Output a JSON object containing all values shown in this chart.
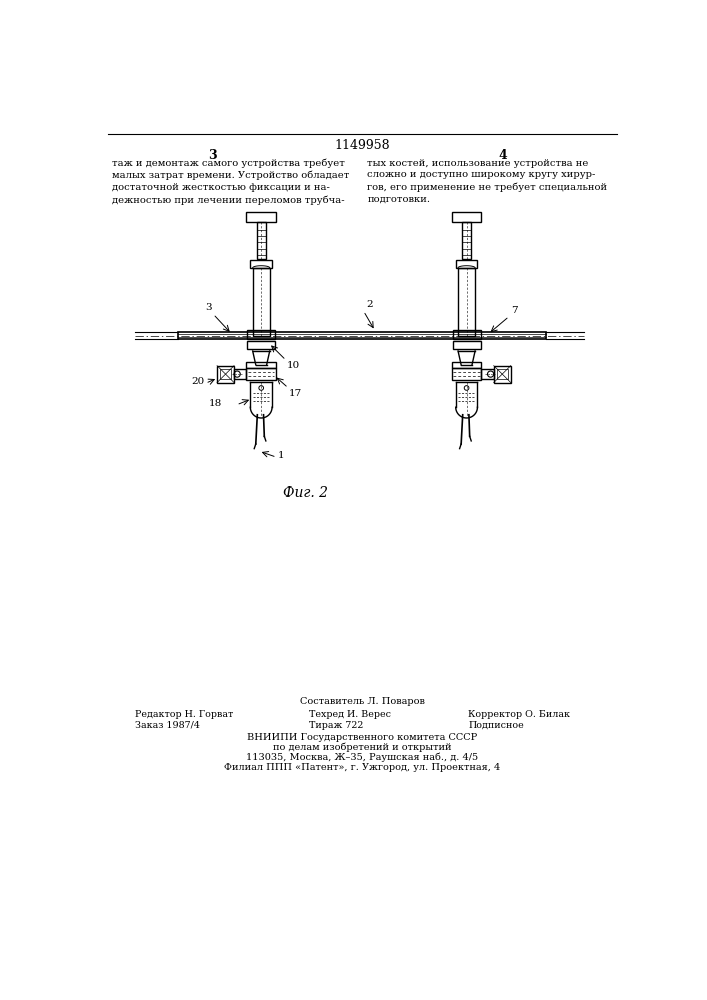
{
  "patent_number": "1149958",
  "page_left": "3",
  "page_right": "4",
  "text_left": "таж и демонтаж самого устройства требует\nмалых затрат времени. Устройство обладает\nдостаточной жесткостью фиксации и на-\nдежностью при лечении переломов трубча-",
  "text_right": "тых костей, использование устройства не\nсложно и доступно широкому кругу хирур-\nгов, его применение не требует специальной\nподготовки.",
  "fig_label": "Фиг. 2",
  "footer_compiler": "Составитель Л. Поваров",
  "footer_editor": "Редактор Н. Горват",
  "footer_order": "Заказ 1987/4",
  "footer_tech": "Техред И. Верес",
  "footer_circulation": "Тираж 722",
  "footer_corrector": "Корректор О. Билак",
  "footer_subscription": "Подписное",
  "footer_vnipi": "ВНИИПИ Государственного комитета СССР",
  "footer_affairs": "по делам изобретений и открытий",
  "footer_address": "113035, Москва, Ж–35, Раушская наб., д. 4/5",
  "footer_filial": "Филиал ППП «Патент», г. Ужгород, ул. Проектная, 4",
  "bg_color": "#ffffff",
  "text_color": "#000000",
  "line_color": "#000000"
}
